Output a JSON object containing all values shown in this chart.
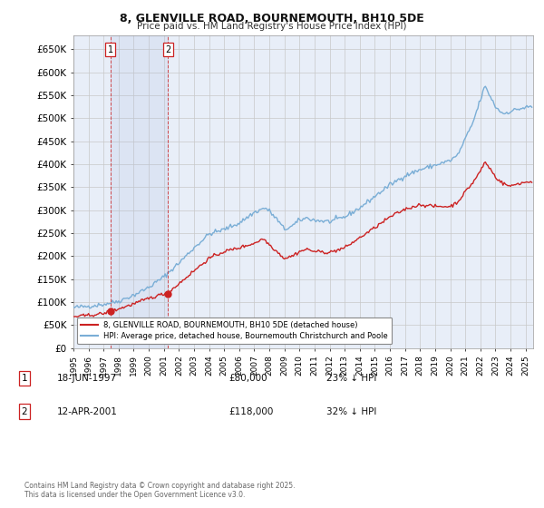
{
  "title1": "8, GLENVILLE ROAD, BOURNEMOUTH, BH10 5DE",
  "title2": "Price paid vs. HM Land Registry's House Price Index (HPI)",
  "ylim": [
    0,
    680000
  ],
  "yticks": [
    0,
    50000,
    100000,
    150000,
    200000,
    250000,
    300000,
    350000,
    400000,
    450000,
    500000,
    550000,
    600000,
    650000
  ],
  "ytick_labels": [
    "£0",
    "£50K",
    "£100K",
    "£150K",
    "£200K",
    "£250K",
    "£300K",
    "£350K",
    "£400K",
    "£450K",
    "£500K",
    "£550K",
    "£600K",
    "£650K"
  ],
  "xlim_start": 1995.0,
  "xlim_end": 2025.5,
  "background_color": "#ffffff",
  "plot_bg_color": "#e8eef8",
  "grid_color": "#c8c8c8",
  "hpi_color": "#7aaed6",
  "price_color": "#cc2222",
  "sale1_x": 1997.46,
  "sale1_y": 80000,
  "sale1_label": "1",
  "sale1_date": "18-JUN-1997",
  "sale1_price": "£80,000",
  "sale1_hpi": "23% ↓ HPI",
  "sale2_x": 2001.28,
  "sale2_y": 118000,
  "sale2_label": "2",
  "sale2_date": "12-APR-2001",
  "sale2_price": "£118,000",
  "sale2_hpi": "32% ↓ HPI",
  "legend_line1": "8, GLENVILLE ROAD, BOURNEMOUTH, BH10 5DE (detached house)",
  "legend_line2": "HPI: Average price, detached house, Bournemouth Christchurch and Poole",
  "footer": "Contains HM Land Registry data © Crown copyright and database right 2025.\nThis data is licensed under the Open Government Licence v3.0."
}
